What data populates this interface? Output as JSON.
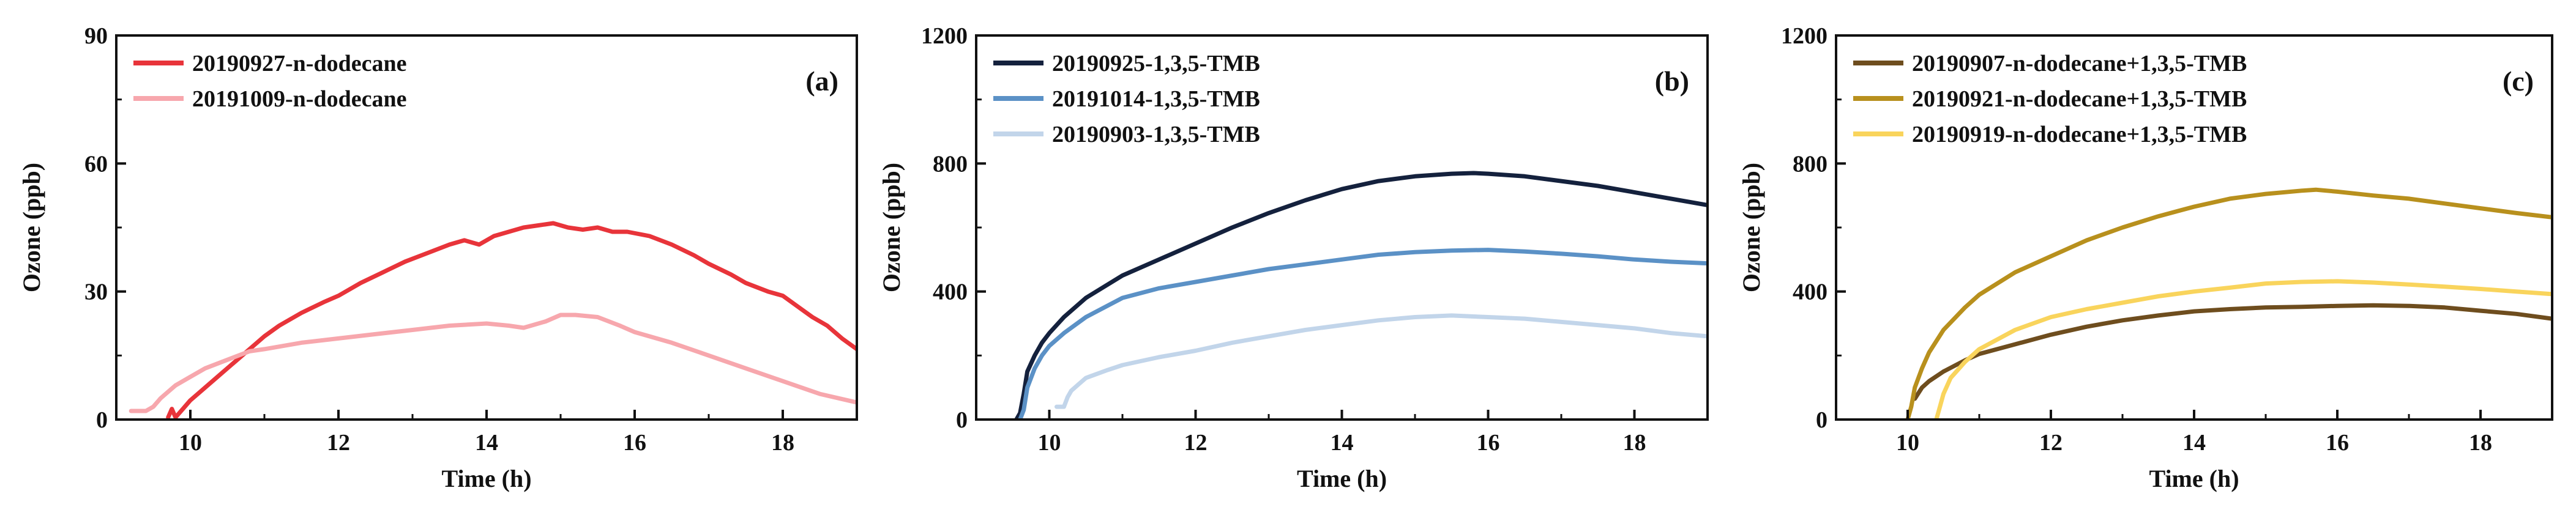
{
  "chart_data": [
    {
      "type": "line",
      "panel_label": "(a)",
      "xlabel": "Time (h)",
      "ylabel": "Ozone (ppb)",
      "xlim": [
        9,
        19
      ],
      "ylim": [
        0,
        90
      ],
      "xticks": [
        10,
        12,
        14,
        16,
        18
      ],
      "yticks": [
        0,
        30,
        60,
        90
      ],
      "grid": false,
      "legend_position": "top-left",
      "series": [
        {
          "name": "20190927-n-dodecane",
          "color": "#e8343a",
          "x": [
            9.7,
            9.75,
            9.8,
            9.9,
            10.0,
            10.2,
            10.4,
            10.6,
            10.8,
            11.0,
            11.2,
            11.5,
            11.8,
            12.0,
            12.3,
            12.6,
            12.9,
            13.2,
            13.5,
            13.7,
            13.9,
            14.1,
            14.3,
            14.5,
            14.7,
            14.9,
            15.1,
            15.3,
            15.5,
            15.7,
            15.9,
            16.2,
            16.5,
            16.8,
            17.0,
            17.3,
            17.5,
            17.8,
            18.0,
            18.2,
            18.4,
            18.6,
            18.8,
            19.0
          ],
          "values": [
            0.5,
            2.5,
            0.5,
            2.5,
            4.5,
            7.5,
            10.5,
            13.5,
            16.5,
            19.5,
            22,
            25,
            27.5,
            29,
            32,
            34.5,
            37,
            39,
            41,
            42,
            41,
            43,
            44,
            45,
            45.5,
            46,
            45,
            44.5,
            45,
            44,
            44,
            43,
            41,
            38.5,
            36.5,
            34,
            32,
            30,
            29,
            26.5,
            24,
            22,
            19,
            16.5
          ]
        },
        {
          "name": "20191009-n-dodecane",
          "color": "#f7a7ad",
          "x": [
            9.2,
            9.4,
            9.5,
            9.6,
            9.7,
            9.8,
            10.0,
            10.2,
            10.5,
            10.8,
            11.0,
            11.5,
            12.0,
            12.5,
            13.0,
            13.5,
            14.0,
            14.3,
            14.5,
            14.8,
            15.0,
            15.2,
            15.5,
            15.8,
            16.0,
            16.5,
            17.0,
            17.5,
            18.0,
            18.5,
            19.0
          ],
          "values": [
            2,
            2,
            3,
            5,
            6.5,
            8,
            10,
            12,
            14,
            16,
            16.5,
            18,
            19,
            20,
            21,
            22,
            22.5,
            22,
            21.5,
            23,
            24.5,
            24.5,
            24,
            22,
            20.5,
            18,
            15,
            12,
            9,
            6,
            4
          ]
        }
      ]
    },
    {
      "type": "line",
      "panel_label": "(b)",
      "xlabel": "Time (h)",
      "ylabel": "Ozone (ppb)",
      "xlim": [
        9,
        19
      ],
      "ylim": [
        0,
        1200
      ],
      "xticks": [
        10,
        12,
        14,
        16,
        18
      ],
      "yticks": [
        0,
        400,
        800,
        1200
      ],
      "grid": false,
      "legend_position": "top-left",
      "series": [
        {
          "name": "20190925-1,3,5-TMB",
          "color": "#14213d",
          "x": [
            9.55,
            9.6,
            9.65,
            9.7,
            9.8,
            9.9,
            10.0,
            10.2,
            10.5,
            11.0,
            11.5,
            12.0,
            12.5,
            13.0,
            13.5,
            14.0,
            14.5,
            15.0,
            15.5,
            15.8,
            16.0,
            16.5,
            17.0,
            17.5,
            18.0,
            18.5,
            19.0
          ],
          "values": [
            0,
            20,
            80,
            150,
            200,
            240,
            270,
            320,
            380,
            450,
            500,
            550,
            600,
            645,
            685,
            720,
            745,
            760,
            768,
            770,
            768,
            760,
            745,
            730,
            710,
            690,
            670
          ]
        },
        {
          "name": "20191014-1,3,5-TMB",
          "color": "#5b91c6",
          "x": [
            9.6,
            9.65,
            9.7,
            9.8,
            9.9,
            10.0,
            10.2,
            10.5,
            11.0,
            11.5,
            12.0,
            12.5,
            13.0,
            13.5,
            14.0,
            14.5,
            15.0,
            15.5,
            16.0,
            16.5,
            17.0,
            17.5,
            18.0,
            18.5,
            19.0
          ],
          "values": [
            0,
            30,
            100,
            160,
            200,
            230,
            270,
            320,
            380,
            410,
            430,
            450,
            470,
            485,
            500,
            515,
            523,
            528,
            530,
            525,
            518,
            510,
            500,
            493,
            488
          ]
        },
        {
          "name": "20190903-1,3,5-TMB",
          "color": "#c2d5ea",
          "x": [
            10.1,
            10.2,
            10.25,
            10.3,
            10.4,
            10.5,
            10.8,
            11.0,
            11.5,
            12.0,
            12.5,
            13.0,
            13.5,
            14.0,
            14.5,
            15.0,
            15.5,
            16.0,
            16.5,
            17.0,
            17.5,
            18.0,
            18.5,
            19.0
          ],
          "values": [
            40,
            40,
            70,
            90,
            110,
            130,
            155,
            170,
            195,
            215,
            240,
            260,
            280,
            295,
            310,
            320,
            325,
            320,
            315,
            305,
            295,
            285,
            270,
            260
          ]
        }
      ]
    },
    {
      "type": "line",
      "panel_label": "(c)",
      "xlabel": "Time (h)",
      "ylabel": "Ozone (ppb)",
      "xlim": [
        9,
        19
      ],
      "ylim": [
        0,
        1200
      ],
      "xticks": [
        10,
        12,
        14,
        16,
        18
      ],
      "yticks": [
        0,
        400,
        800,
        1200
      ],
      "grid": false,
      "legend_position": "top-left",
      "series": [
        {
          "name": "20190907-n-dodecane+1,3,5-TMB",
          "color": "#6e4d1e",
          "x": [
            10.1,
            10.2,
            10.3,
            10.5,
            10.8,
            11.0,
            11.5,
            12.0,
            12.5,
            13.0,
            13.5,
            14.0,
            14.5,
            15.0,
            15.5,
            16.0,
            16.5,
            17.0,
            17.5,
            18.0,
            18.5,
            19.0
          ],
          "values": [
            65,
            100,
            120,
            150,
            185,
            205,
            235,
            265,
            290,
            310,
            325,
            338,
            345,
            350,
            352,
            355,
            357,
            355,
            350,
            340,
            330,
            315
          ]
        },
        {
          "name": "20190921-n-dodecane+1,3,5-TMB",
          "color": "#b8901d",
          "x": [
            10.0,
            10.05,
            10.1,
            10.2,
            10.3,
            10.5,
            10.8,
            11.0,
            11.5,
            12.0,
            12.5,
            13.0,
            13.5,
            14.0,
            14.5,
            15.0,
            15.5,
            15.7,
            16.0,
            16.5,
            17.0,
            17.5,
            18.0,
            18.5,
            19.0
          ],
          "values": [
            0,
            40,
            100,
            160,
            210,
            280,
            350,
            390,
            460,
            510,
            560,
            600,
            635,
            665,
            690,
            705,
            715,
            718,
            712,
            700,
            690,
            675,
            660,
            645,
            632
          ]
        },
        {
          "name": "20190919-n-dodecane+1,3,5-TMB",
          "color": "#f9d45c",
          "x": [
            10.4,
            10.45,
            10.5,
            10.6,
            10.8,
            11.0,
            11.5,
            12.0,
            12.5,
            13.0,
            13.5,
            14.0,
            14.5,
            15.0,
            15.5,
            16.0,
            16.5,
            17.0,
            17.5,
            18.0,
            18.5,
            19.0
          ],
          "values": [
            0,
            40,
            80,
            130,
            180,
            220,
            280,
            320,
            345,
            365,
            385,
            400,
            412,
            425,
            430,
            432,
            428,
            422,
            415,
            408,
            400,
            392
          ]
        }
      ]
    }
  ]
}
